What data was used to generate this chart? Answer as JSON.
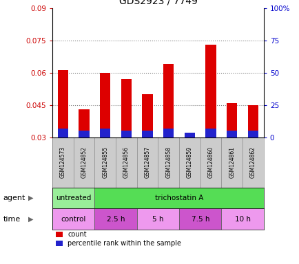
{
  "title": "GDS2923 / 7749",
  "samples": [
    "GSM124573",
    "GSM124852",
    "GSM124855",
    "GSM124856",
    "GSM124857",
    "GSM124858",
    "GSM124859",
    "GSM124860",
    "GSM124861",
    "GSM124862"
  ],
  "count_values": [
    0.061,
    0.043,
    0.06,
    0.057,
    0.05,
    0.064,
    0.031,
    0.073,
    0.046,
    0.045
  ],
  "count_base": 0.03,
  "percentile_heights": [
    0.004,
    0.003,
    0.004,
    0.003,
    0.003,
    0.004,
    0.002,
    0.004,
    0.003,
    0.003
  ],
  "ylim": [
    0.03,
    0.09
  ],
  "yticks": [
    0.03,
    0.045,
    0.06,
    0.075,
    0.09
  ],
  "ytick_labels_left": [
    "0.03",
    "0.045",
    "0.06",
    "0.075",
    "0.09"
  ],
  "ytick_labels_right": [
    "0",
    "25",
    "50",
    "75",
    "100%"
  ],
  "bar_color_red": "#dd0000",
  "bar_color_blue": "#2222cc",
  "bar_width": 0.5,
  "grid_color": "#000000",
  "grid_linestyle": "dotted",
  "tick_color_left": "#cc0000",
  "tick_color_right": "#0000cc",
  "agent_spans": [
    {
      "text": "untreated",
      "start": 0,
      "end": 2,
      "color": "#99ee99"
    },
    {
      "text": "trichostatin A",
      "start": 2,
      "end": 10,
      "color": "#55dd55"
    }
  ],
  "time_spans": [
    {
      "text": "control",
      "start": 0,
      "end": 2,
      "color": "#ee99ee"
    },
    {
      "text": "2.5 h",
      "start": 2,
      "end": 4,
      "color": "#cc55cc"
    },
    {
      "text": "5 h",
      "start": 4,
      "end": 6,
      "color": "#ee99ee"
    },
    {
      "text": "7.5 h",
      "start": 6,
      "end": 8,
      "color": "#cc55cc"
    },
    {
      "text": "10 h",
      "start": 8,
      "end": 10,
      "color": "#ee99ee"
    }
  ],
  "bg_color": "#ffffff",
  "sample_bg": "#cccccc",
  "sample_border": "#888888",
  "left_label_agent": "agent",
  "left_label_time": "time",
  "legend_items": [
    {
      "label": "count",
      "color": "#dd0000"
    },
    {
      "label": "percentile rank within the sample",
      "color": "#2222cc"
    }
  ]
}
